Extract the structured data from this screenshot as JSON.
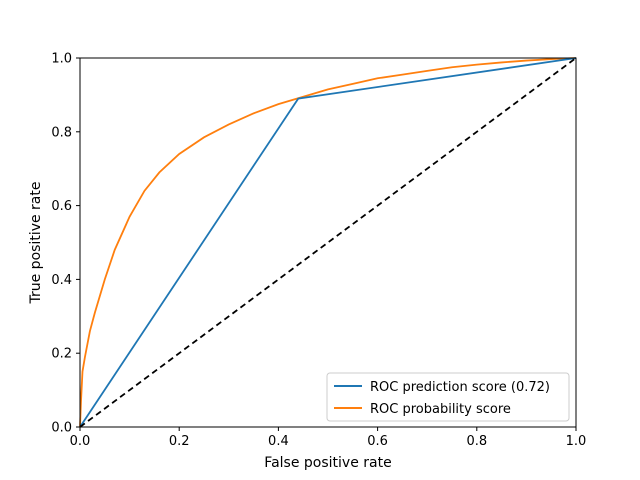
{
  "chart_data": {
    "type": "line",
    "xlabel": "False positive rate",
    "ylabel": "True positive rate",
    "xlim": [
      0,
      1
    ],
    "ylim": [
      0,
      1
    ],
    "xticks": [
      "0.0",
      "0.2",
      "0.4",
      "0.6",
      "0.8",
      "1.0"
    ],
    "yticks": [
      "0.0",
      "0.2",
      "0.4",
      "0.6",
      "0.8",
      "1.0"
    ],
    "grid": false,
    "legend_position": "lower-right",
    "series": [
      {
        "name": "ROC prediction score (0.72)",
        "color": "#1f77b4",
        "style": "solid",
        "x": [
          0.0,
          0.44,
          1.0
        ],
        "y": [
          0.0,
          0.89,
          1.0
        ]
      },
      {
        "name": "ROC probability score",
        "color": "#ff7f0e",
        "style": "solid",
        "x": [
          0.0,
          0.002,
          0.005,
          0.01,
          0.02,
          0.03,
          0.05,
          0.07,
          0.1,
          0.13,
          0.16,
          0.2,
          0.25,
          0.3,
          0.35,
          0.4,
          0.45,
          0.5,
          0.55,
          0.6,
          0.65,
          0.7,
          0.75,
          0.8,
          0.85,
          0.9,
          0.95,
          1.0
        ],
        "y": [
          0.0,
          0.07,
          0.15,
          0.19,
          0.26,
          0.31,
          0.4,
          0.48,
          0.57,
          0.64,
          0.69,
          0.74,
          0.785,
          0.82,
          0.85,
          0.875,
          0.895,
          0.915,
          0.93,
          0.945,
          0.955,
          0.965,
          0.975,
          0.982,
          0.988,
          0.993,
          0.997,
          1.0
        ]
      },
      {
        "name": "",
        "color": "#000000",
        "style": "dashed",
        "x": [
          0.0,
          1.0
        ],
        "y": [
          0.0,
          1.0
        ]
      }
    ]
  }
}
